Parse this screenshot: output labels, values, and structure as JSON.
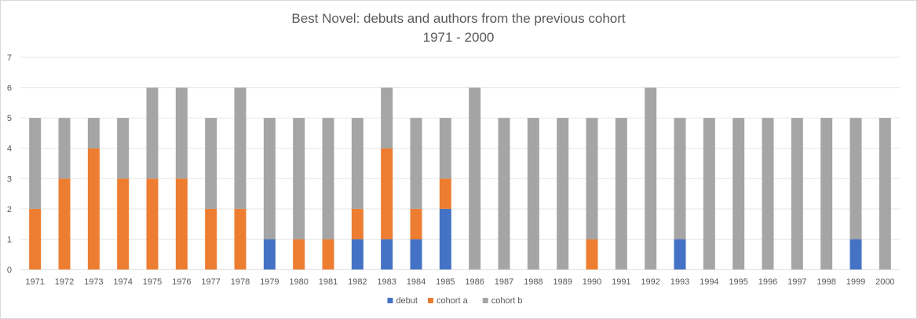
{
  "chart_data": {
    "type": "bar",
    "stacked": true,
    "title": "Best Novel: debuts and authors from the previous cohort",
    "subtitle": "1971 - 2000",
    "xlabel": "",
    "ylabel": "",
    "ylim": [
      0,
      7
    ],
    "yticks": [
      0,
      1,
      2,
      3,
      4,
      5,
      6,
      7
    ],
    "grid": true,
    "legend_position": "bottom",
    "categories": [
      "1971",
      "1972",
      "1973",
      "1974",
      "1975",
      "1976",
      "1977",
      "1978",
      "1979",
      "1980",
      "1981",
      "1982",
      "1983",
      "1984",
      "1985",
      "1986",
      "1987",
      "1988",
      "1989",
      "1990",
      "1991",
      "1992",
      "1993",
      "1994",
      "1995",
      "1996",
      "1997",
      "1998",
      "1999",
      "2000"
    ],
    "series": [
      {
        "name": "debut",
        "color": "#4472c4",
        "values": [
          0,
          0,
          0,
          0,
          0,
          0,
          0,
          0,
          1,
          0,
          0,
          1,
          1,
          1,
          2,
          0,
          0,
          0,
          0,
          0,
          0,
          0,
          1,
          0,
          0,
          0,
          0,
          0,
          1,
          0
        ]
      },
      {
        "name": "cohort a",
        "color": "#ed7d31",
        "values": [
          2,
          3,
          4,
          3,
          3,
          3,
          2,
          2,
          0,
          1,
          1,
          1,
          3,
          1,
          1,
          0,
          0,
          0,
          0,
          1,
          0,
          0,
          0,
          0,
          0,
          0,
          0,
          0,
          0,
          0
        ]
      },
      {
        "name": "cohort b",
        "color": "#a5a5a5",
        "values": [
          3,
          2,
          1,
          2,
          3,
          3,
          3,
          4,
          4,
          4,
          4,
          3,
          2,
          3,
          2,
          6,
          5,
          5,
          5,
          4,
          5,
          6,
          4,
          5,
          5,
          5,
          5,
          5,
          4,
          5
        ]
      }
    ]
  }
}
